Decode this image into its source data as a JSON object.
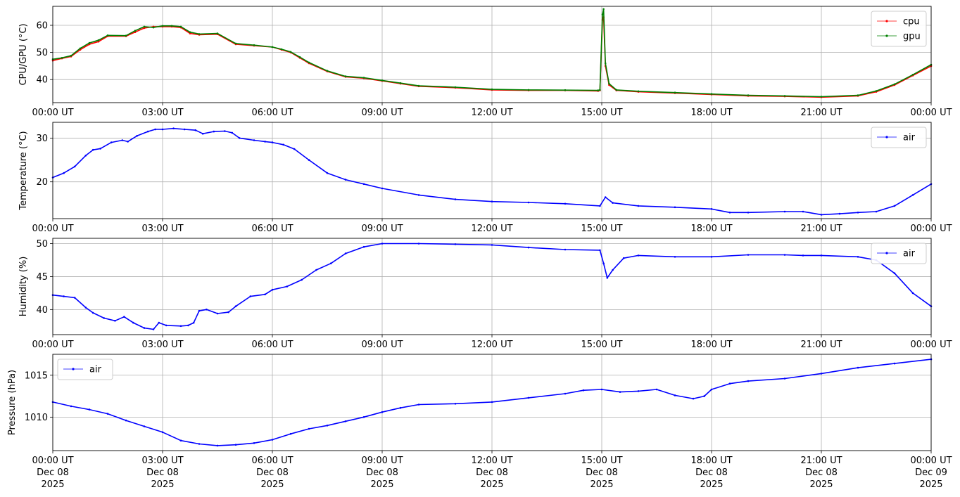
{
  "chart_data": [
    {
      "type": "line",
      "ylabel": "CPU/GPU (°C)",
      "ylim": [
        31.5,
        67
      ],
      "yticks": [
        40,
        50,
        60
      ],
      "legend": "top-right",
      "grid": true,
      "x_ticks": [
        "00:00 UT",
        "03:00 UT",
        "06:00 UT",
        "09:00 UT",
        "12:00 UT",
        "15:00 UT",
        "18:00 UT",
        "21:00 UT",
        "00:00 UT"
      ],
      "x_date_labels": [],
      "series": [
        {
          "name": "cpu",
          "color": "#ff0000",
          "points": [
            [
              0,
              47
            ],
            [
              0.25,
              47.8
            ],
            [
              0.5,
              48.5
            ],
            [
              0.75,
              51
            ],
            [
              1,
              53
            ],
            [
              1.25,
              54
            ],
            [
              1.5,
              56
            ],
            [
              2,
              56
            ],
            [
              2.25,
              57.5
            ],
            [
              2.5,
              59
            ],
            [
              2.75,
              59.5
            ],
            [
              3,
              59.5
            ],
            [
              3.25,
              59.5
            ],
            [
              3.5,
              59.2
            ],
            [
              3.75,
              57
            ],
            [
              4,
              56.5
            ],
            [
              4.5,
              56.7
            ],
            [
              5,
              53
            ],
            [
              5.5,
              52.5
            ],
            [
              6,
              52
            ],
            [
              6.25,
              51
            ],
            [
              6.5,
              50
            ],
            [
              6.75,
              48
            ],
            [
              7,
              46
            ],
            [
              7.5,
              43
            ],
            [
              8,
              41
            ],
            [
              8.5,
              40.5
            ],
            [
              9,
              39.5
            ],
            [
              9.5,
              38.5
            ],
            [
              10,
              37.5
            ],
            [
              11,
              37
            ],
            [
              12,
              36.2
            ],
            [
              13,
              36
            ],
            [
              14,
              36
            ],
            [
              14.9,
              35.8
            ],
            [
              14.95,
              36
            ],
            [
              15.02,
              62
            ],
            [
              15.05,
              63
            ],
            [
              15.1,
              45
            ],
            [
              15.2,
              38
            ],
            [
              15.4,
              36
            ],
            [
              16,
              35.5
            ],
            [
              17,
              35
            ],
            [
              18,
              34.5
            ],
            [
              19,
              34
            ],
            [
              20,
              33.8
            ],
            [
              21,
              33.5
            ],
            [
              22,
              34
            ],
            [
              22.5,
              35.5
            ],
            [
              23,
              38
            ],
            [
              23.5,
              41.5
            ],
            [
              24,
              45
            ]
          ]
        },
        {
          "name": "gpu",
          "color": "#008000",
          "points": [
            [
              0,
              47.5
            ],
            [
              0.25,
              48
            ],
            [
              0.5,
              48.8
            ],
            [
              0.75,
              51.5
            ],
            [
              1,
              53.5
            ],
            [
              1.25,
              54.5
            ],
            [
              1.5,
              56.3
            ],
            [
              2,
              56.2
            ],
            [
              2.25,
              58
            ],
            [
              2.5,
              59.5
            ],
            [
              2.75,
              59.2
            ],
            [
              3,
              59.8
            ],
            [
              3.25,
              59.8
            ],
            [
              3.5,
              59.5
            ],
            [
              3.75,
              57.5
            ],
            [
              4,
              56.8
            ],
            [
              4.5,
              57
            ],
            [
              5,
              53.3
            ],
            [
              5.5,
              52.7
            ],
            [
              6,
              52
            ],
            [
              6.25,
              51.2
            ],
            [
              6.5,
              50.2
            ],
            [
              6.75,
              48.3
            ],
            [
              7,
              46.3
            ],
            [
              7.5,
              43.2
            ],
            [
              8,
              41.2
            ],
            [
              8.5,
              40.7
            ],
            [
              9,
              39.7
            ],
            [
              9.5,
              38.7
            ],
            [
              10,
              37.7
            ],
            [
              11,
              37.2
            ],
            [
              12,
              36.4
            ],
            [
              13,
              36.2
            ],
            [
              14,
              36.1
            ],
            [
              14.9,
              36
            ],
            [
              14.95,
              36.2
            ],
            [
              15.02,
              64
            ],
            [
              15.05,
              66
            ],
            [
              15.1,
              46
            ],
            [
              15.2,
              38.5
            ],
            [
              15.4,
              36.2
            ],
            [
              16,
              35.7
            ],
            [
              17,
              35.2
            ],
            [
              18,
              34.7
            ],
            [
              19,
              34.2
            ],
            [
              20,
              34
            ],
            [
              21,
              33.7
            ],
            [
              22,
              34.2
            ],
            [
              22.5,
              35.8
            ],
            [
              23,
              38.3
            ],
            [
              23.5,
              41.8
            ],
            [
              24,
              45.5
            ]
          ]
        }
      ]
    },
    {
      "type": "line",
      "ylabel": "Temperature (°C)",
      "ylim": [
        11.6,
        33.6
      ],
      "yticks": [
        20,
        30
      ],
      "legend": "top-right",
      "grid": true,
      "x_ticks": [
        "00:00 UT",
        "03:00 UT",
        "06:00 UT",
        "09:00 UT",
        "12:00 UT",
        "15:00 UT",
        "18:00 UT",
        "21:00 UT",
        "00:00 UT"
      ],
      "x_date_labels": [],
      "series": [
        {
          "name": "air",
          "color": "#0000ff",
          "points": [
            [
              0,
              21
            ],
            [
              0.3,
              22
            ],
            [
              0.6,
              23.5
            ],
            [
              0.9,
              26
            ],
            [
              1.1,
              27.3
            ],
            [
              1.3,
              27.6
            ],
            [
              1.6,
              29
            ],
            [
              1.9,
              29.5
            ],
            [
              2.05,
              29.2
            ],
            [
              2.3,
              30.5
            ],
            [
              2.6,
              31.5
            ],
            [
              2.8,
              32
            ],
            [
              3,
              32
            ],
            [
              3.3,
              32.2
            ],
            [
              3.6,
              32
            ],
            [
              3.9,
              31.8
            ],
            [
              4.1,
              31
            ],
            [
              4.4,
              31.5
            ],
            [
              4.7,
              31.6
            ],
            [
              4.9,
              31.2
            ],
            [
              5.1,
              30
            ],
            [
              5.5,
              29.5
            ],
            [
              5.8,
              29.2
            ],
            [
              6,
              29
            ],
            [
              6.3,
              28.5
            ],
            [
              6.6,
              27.5
            ],
            [
              7,
              25
            ],
            [
              7.5,
              22
            ],
            [
              8,
              20.5
            ],
            [
              8.5,
              19.5
            ],
            [
              9,
              18.5
            ],
            [
              10,
              17
            ],
            [
              11,
              16
            ],
            [
              12,
              15.5
            ],
            [
              13,
              15.3
            ],
            [
              14,
              15
            ],
            [
              14.95,
              14.5
            ],
            [
              15.1,
              16.5
            ],
            [
              15.3,
              15.2
            ],
            [
              16,
              14.5
            ],
            [
              17,
              14.2
            ],
            [
              18,
              13.8
            ],
            [
              18.5,
              13
            ],
            [
              19,
              13
            ],
            [
              20,
              13.2
            ],
            [
              20.5,
              13.2
            ],
            [
              21,
              12.5
            ],
            [
              21.5,
              12.7
            ],
            [
              22,
              13
            ],
            [
              22.5,
              13.2
            ],
            [
              23,
              14.5
            ],
            [
              23.5,
              17
            ],
            [
              24,
              19.5
            ]
          ]
        }
      ]
    },
    {
      "type": "line",
      "ylabel": "Humidity (%)",
      "ylim": [
        36.2,
        50.8
      ],
      "yticks": [
        40,
        45,
        50
      ],
      "legend": "top-right",
      "grid": true,
      "x_ticks": [
        "00:00 UT",
        "03:00 UT",
        "06:00 UT",
        "09:00 UT",
        "12:00 UT",
        "15:00 UT",
        "18:00 UT",
        "21:00 UT",
        "00:00 UT"
      ],
      "x_date_labels": [],
      "series": [
        {
          "name": "air",
          "color": "#0000ff",
          "points": [
            [
              0,
              42.2
            ],
            [
              0.3,
              42
            ],
            [
              0.6,
              41.8
            ],
            [
              0.9,
              40.3
            ],
            [
              1.1,
              39.5
            ],
            [
              1.4,
              38.7
            ],
            [
              1.7,
              38.3
            ],
            [
              1.95,
              38.9
            ],
            [
              2.2,
              38
            ],
            [
              2.5,
              37.2
            ],
            [
              2.75,
              37
            ],
            [
              2.9,
              38
            ],
            [
              3.1,
              37.6
            ],
            [
              3.5,
              37.5
            ],
            [
              3.7,
              37.6
            ],
            [
              3.85,
              38
            ],
            [
              4,
              39.8
            ],
            [
              4.2,
              40
            ],
            [
              4.5,
              39.4
            ],
            [
              4.8,
              39.6
            ],
            [
              5,
              40.5
            ],
            [
              5.4,
              42
            ],
            [
              5.8,
              42.3
            ],
            [
              6,
              43
            ],
            [
              6.4,
              43.5
            ],
            [
              6.8,
              44.5
            ],
            [
              7.2,
              46
            ],
            [
              7.6,
              47
            ],
            [
              8,
              48.5
            ],
            [
              8.5,
              49.5
            ],
            [
              9,
              50
            ],
            [
              10,
              50
            ],
            [
              11,
              49.9
            ],
            [
              12,
              49.8
            ],
            [
              13,
              49.4
            ],
            [
              14,
              49.1
            ],
            [
              14.95,
              49
            ],
            [
              15.05,
              47
            ],
            [
              15.15,
              44.8
            ],
            [
              15.3,
              46
            ],
            [
              15.6,
              47.8
            ],
            [
              16,
              48.2
            ],
            [
              17,
              48
            ],
            [
              18,
              48
            ],
            [
              19,
              48.3
            ],
            [
              20,
              48.3
            ],
            [
              20.5,
              48.2
            ],
            [
              21,
              48.2
            ],
            [
              22,
              48
            ],
            [
              22.5,
              47.5
            ],
            [
              23,
              45.5
            ],
            [
              23.5,
              42.5
            ],
            [
              24,
              40.5
            ]
          ]
        }
      ]
    },
    {
      "type": "line",
      "ylabel": "Pressure (hPa)",
      "ylim": [
        1006,
        1017.5
      ],
      "yticks": [
        1010,
        1015
      ],
      "legend": "top-left",
      "grid": true,
      "x_ticks": [
        "00:00 UT",
        "03:00 UT",
        "06:00 UT",
        "09:00 UT",
        "12:00 UT",
        "15:00 UT",
        "18:00 UT",
        "21:00 UT",
        "00:00 UT"
      ],
      "x_date_labels": [
        [
          "Dec 08",
          "2025"
        ],
        [
          "Dec 08",
          "2025"
        ],
        [
          "Dec 08",
          "2025"
        ],
        [
          "Dec 08",
          "2025"
        ],
        [
          "Dec 08",
          "2025"
        ],
        [
          "Dec 08",
          "2025"
        ],
        [
          "Dec 08",
          "2025"
        ],
        [
          "Dec 08",
          "2025"
        ],
        [
          "Dec 09",
          "2025"
        ]
      ],
      "series": [
        {
          "name": "air",
          "color": "#0000ff",
          "points": [
            [
              0,
              1011.8
            ],
            [
              0.5,
              1011.3
            ],
            [
              1,
              1010.9
            ],
            [
              1.5,
              1010.4
            ],
            [
              2,
              1009.6
            ],
            [
              2.5,
              1008.9
            ],
            [
              3,
              1008.2
            ],
            [
              3.5,
              1007.2
            ],
            [
              4,
              1006.8
            ],
            [
              4.5,
              1006.6
            ],
            [
              5,
              1006.7
            ],
            [
              5.5,
              1006.9
            ],
            [
              6,
              1007.3
            ],
            [
              6.5,
              1008
            ],
            [
              7,
              1008.6
            ],
            [
              7.5,
              1009
            ],
            [
              8,
              1009.5
            ],
            [
              8.5,
              1010
            ],
            [
              9,
              1010.6
            ],
            [
              9.5,
              1011.1
            ],
            [
              10,
              1011.5
            ],
            [
              11,
              1011.6
            ],
            [
              12,
              1011.8
            ],
            [
              13,
              1012.3
            ],
            [
              14,
              1012.8
            ],
            [
              14.5,
              1013.2
            ],
            [
              15,
              1013.3
            ],
            [
              15.5,
              1013
            ],
            [
              16,
              1013.1
            ],
            [
              16.5,
              1013.3
            ],
            [
              17,
              1012.6
            ],
            [
              17.5,
              1012.2
            ],
            [
              17.8,
              1012.5
            ],
            [
              18,
              1013.3
            ],
            [
              18.5,
              1014
            ],
            [
              19,
              1014.3
            ],
            [
              20,
              1014.6
            ],
            [
              21,
              1015.2
            ],
            [
              22,
              1015.9
            ],
            [
              23,
              1016.4
            ],
            [
              24,
              1016.9
            ]
          ]
        }
      ]
    }
  ]
}
